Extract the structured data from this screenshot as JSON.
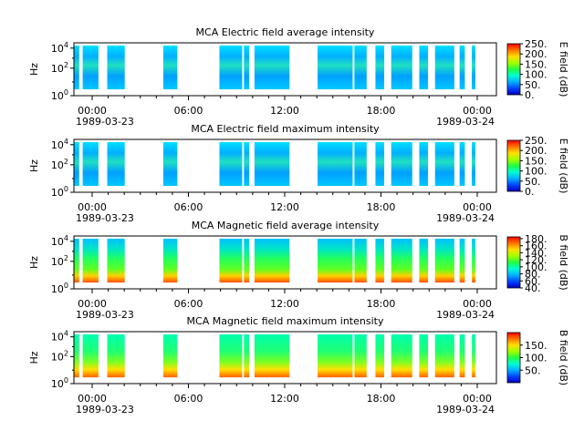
{
  "chart_data": [
    {
      "type": "heatmap",
      "title": "MCA  Electric field average intensity",
      "ylabel": "Hz",
      "yticks": [
        "10^0",
        "10^2",
        "10^4"
      ],
      "xticks": [
        "00:00",
        "06:00",
        "12:00",
        "18:00",
        "00:00"
      ],
      "date_start": "1989-03-23",
      "date_end": "1989-03-24",
      "colorbar_label": "E field (dB)",
      "colorbar_ticks": [
        "250.",
        "200.",
        "150.",
        "100.",
        "50.",
        "0."
      ],
      "clim": [
        0,
        250
      ],
      "coverage_hours": [
        [
          0.9,
          1.2
        ],
        [
          1.4,
          2.3
        ],
        [
          2.8,
          3.8
        ],
        [
          6.0,
          6.8
        ],
        [
          9.2,
          10.5
        ],
        [
          10.6,
          10.9
        ],
        [
          11.2,
          13.2
        ],
        [
          14.8,
          16.8
        ],
        [
          16.9,
          17.6
        ],
        [
          18.1,
          18.6
        ],
        [
          19.0,
          20.2
        ],
        [
          20.6,
          21.1
        ],
        [
          21.5,
          22.6
        ],
        [
          22.9,
          23.2
        ],
        [
          23.6,
          23.8
        ]
      ]
    },
    {
      "type": "heatmap",
      "title": "MCA  Electric field maximum intensity",
      "ylabel": "Hz",
      "yticks": [
        "10^0",
        "10^2",
        "10^4"
      ],
      "xticks": [
        "00:00",
        "06:00",
        "12:00",
        "18:00",
        "00:00"
      ],
      "date_start": "1989-03-23",
      "date_end": "1989-03-24",
      "colorbar_label": "E field (dB)",
      "colorbar_ticks": [
        "250.",
        "200.",
        "150.",
        "100.",
        "50.",
        "0."
      ],
      "clim": [
        0,
        250
      ],
      "coverage_hours": [
        [
          0.9,
          1.2
        ],
        [
          1.4,
          2.3
        ],
        [
          2.8,
          3.8
        ],
        [
          6.0,
          6.8
        ],
        [
          9.2,
          10.5
        ],
        [
          10.6,
          10.9
        ],
        [
          11.2,
          13.2
        ],
        [
          14.8,
          16.8
        ],
        [
          16.9,
          17.6
        ],
        [
          18.1,
          18.6
        ],
        [
          19.0,
          20.2
        ],
        [
          20.6,
          21.1
        ],
        [
          21.5,
          22.6
        ],
        [
          22.9,
          23.2
        ],
        [
          23.6,
          23.8
        ]
      ]
    },
    {
      "type": "heatmap",
      "title": "MCA  Magnetic field average intensity",
      "ylabel": "Hz",
      "yticks": [
        "10^0",
        "10^2",
        "10^4"
      ],
      "xticks": [
        "00:00",
        "06:00",
        "12:00",
        "18:00",
        "00:00"
      ],
      "date_start": "1989-03-23",
      "date_end": "1989-03-24",
      "colorbar_label": "B field (dB)",
      "colorbar_ticks": [
        "180.",
        "160.",
        "140.",
        "120.",
        "100.",
        "80.",
        "60.",
        "40."
      ],
      "clim": [
        40,
        185
      ],
      "coverage_hours": [
        [
          0.9,
          1.2
        ],
        [
          1.4,
          2.3
        ],
        [
          2.8,
          3.8
        ],
        [
          6.0,
          6.8
        ],
        [
          9.2,
          10.5
        ],
        [
          10.6,
          10.9
        ],
        [
          11.2,
          13.2
        ],
        [
          14.8,
          16.8
        ],
        [
          16.9,
          17.6
        ],
        [
          18.1,
          18.6
        ],
        [
          19.0,
          20.2
        ],
        [
          20.6,
          21.1
        ],
        [
          21.5,
          22.6
        ],
        [
          22.9,
          23.2
        ],
        [
          23.6,
          23.8
        ]
      ]
    },
    {
      "type": "heatmap",
      "title": "MCA  Magnetic field maximum intensity",
      "ylabel": "Hz",
      "yticks": [
        "10^0",
        "10^2",
        "10^4"
      ],
      "xticks": [
        "00:00",
        "06:00",
        "12:00",
        "18:00",
        "00:00"
      ],
      "date_start": "1989-03-23",
      "date_end": "1989-03-24",
      "colorbar_label": "B field (dB)",
      "colorbar_ticks": [
        "150.",
        "100.",
        "50."
      ],
      "clim": [
        0,
        200
      ],
      "coverage_hours": [
        [
          0.9,
          1.2
        ],
        [
          1.4,
          2.3
        ],
        [
          2.8,
          3.8
        ],
        [
          6.0,
          6.8
        ],
        [
          9.2,
          10.5
        ],
        [
          10.6,
          10.9
        ],
        [
          11.2,
          13.2
        ],
        [
          14.8,
          16.8
        ],
        [
          16.9,
          17.6
        ],
        [
          18.1,
          18.6
        ],
        [
          19.0,
          20.2
        ],
        [
          20.6,
          21.1
        ],
        [
          21.5,
          22.6
        ],
        [
          22.9,
          23.2
        ],
        [
          23.6,
          23.8
        ]
      ]
    }
  ]
}
